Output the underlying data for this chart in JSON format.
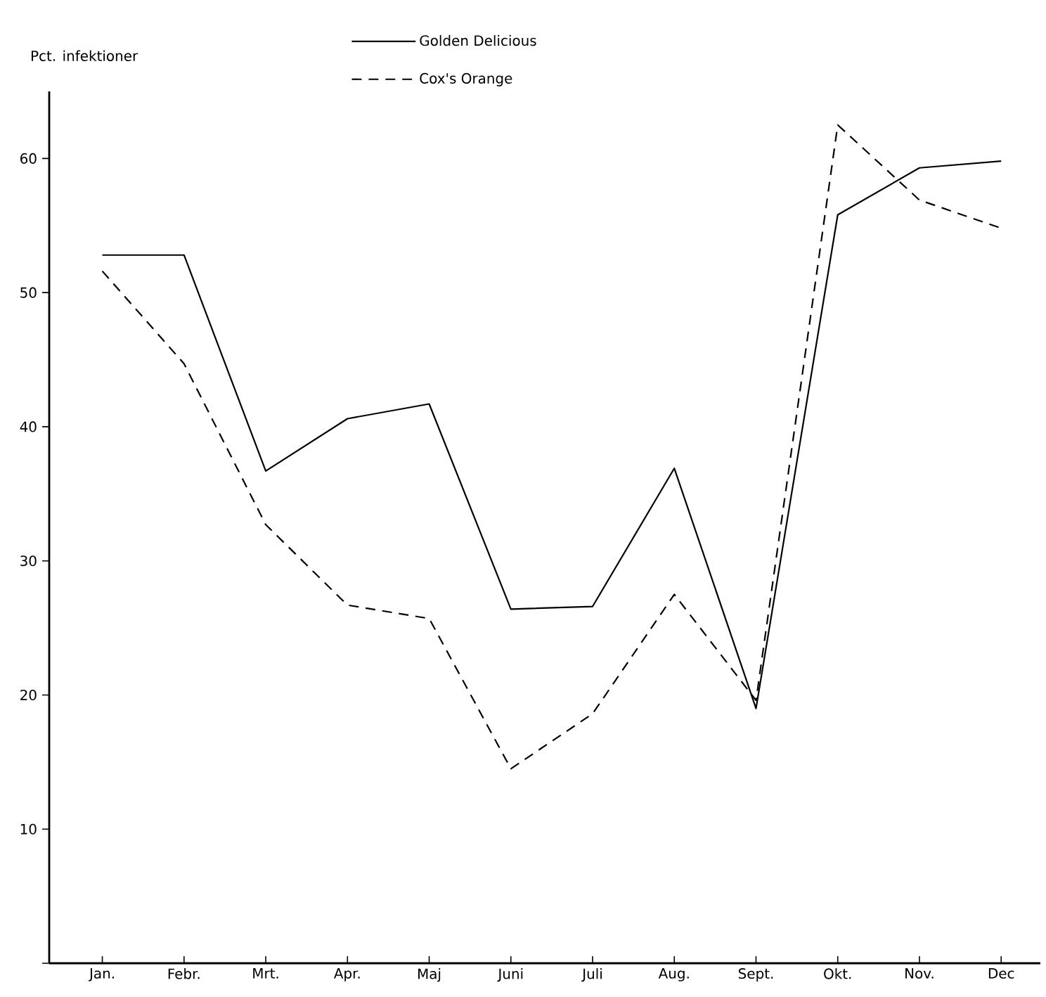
{
  "chart_data": {
    "type": "line",
    "ylabel": "Pct. infektioner",
    "categories": [
      "Jan.",
      "Febr.",
      "Mrt.",
      "Apr.",
      "Maj",
      "Juni",
      "Juli",
      "Aug.",
      "Sept.",
      "Okt.",
      "Nov.",
      "Dec"
    ],
    "series": [
      {
        "name": "Golden Delicious",
        "color": "#000000",
        "line_style": "solid",
        "values": [
          52.8,
          52.8,
          36.7,
          40.6,
          41.7,
          26.4,
          26.6,
          36.9,
          19.0,
          55.8,
          59.3,
          59.8
        ]
      },
      {
        "name": "Cox's Orange",
        "color": "#000000",
        "line_style": "dashed",
        "values": [
          51.6,
          44.7,
          32.7,
          26.7,
          25.7,
          14.5,
          18.6,
          27.5,
          19.6,
          62.5,
          56.9,
          54.8
        ]
      }
    ],
    "ylim": [
      0,
      65
    ],
    "yticks": [
      {
        "value": 0,
        "label": null
      },
      10,
      20,
      30,
      40,
      50,
      60
    ],
    "grid": false,
    "legend": "top",
    "marker": "none"
  }
}
